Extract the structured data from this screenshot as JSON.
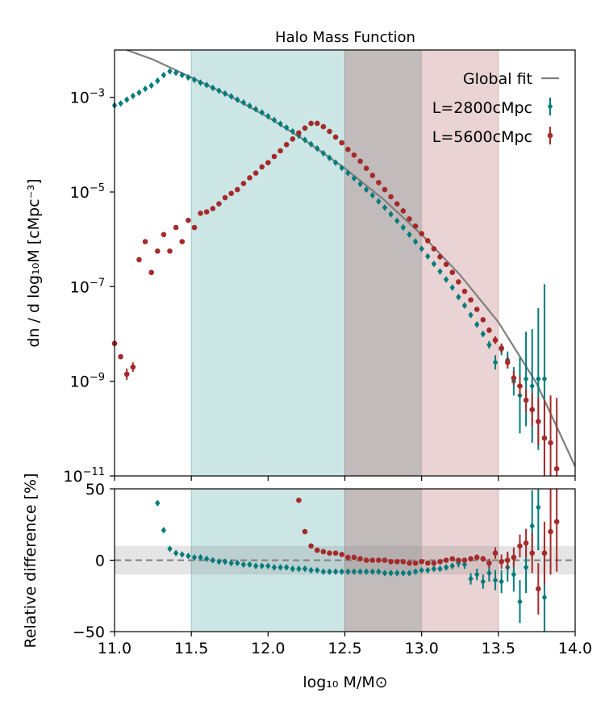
{
  "chart_data": [
    {
      "type": "scatter",
      "title": "Halo Mass Function",
      "xlabel": "log₁₀ M/M⊙",
      "ylabel": "dn / d log₁₀M [cMpc⁻³]",
      "xlim": [
        11.0,
        14.0
      ],
      "ylim_log10": [
        -11,
        -2
      ],
      "yscale": "log",
      "y_ticks": [
        {
          "exp": -3,
          "base": "10",
          "sup": "−3"
        },
        {
          "exp": -5,
          "base": "10",
          "sup": "−5"
        },
        {
          "exp": -7,
          "base": "10",
          "sup": "−7"
        },
        {
          "exp": -9,
          "base": "10",
          "sup": "−9"
        },
        {
          "exp": -11,
          "base": "10",
          "sup": "−11"
        }
      ],
      "shaded_ranges": [
        {
          "x0": 11.5,
          "x1": 12.5,
          "color": "#cce5e5",
          "edge": "#9cc8c8"
        },
        {
          "x0": 12.5,
          "x1": 13.0,
          "color": "#c2bbbb",
          "edge": "#a89e9e"
        },
        {
          "x0": 13.0,
          "x1": 13.5,
          "color": "#ead3d4",
          "edge": "#d6b3b5"
        }
      ],
      "legend": {
        "position": "top-right",
        "entries": [
          {
            "label": "Global fit",
            "kind": "line",
            "color": "#7f7f7f"
          },
          {
            "label": "L=2800cMpc",
            "kind": "diamond",
            "color": "#007b7b"
          },
          {
            "label": "L=5600cMpc",
            "kind": "circle",
            "color": "#a52a2a"
          }
        ]
      },
      "series": [
        {
          "name": "Global fit",
          "kind": "line",
          "color": "#7f7f7f",
          "x": [
            11.08,
            11.25,
            11.5,
            11.75,
            12.0,
            12.25,
            12.5,
            12.75,
            13.0,
            13.25,
            13.5,
            13.75,
            14.0
          ],
          "log10y": [
            -2.0,
            -2.2,
            -2.58,
            -2.97,
            -3.42,
            -3.93,
            -4.5,
            -5.15,
            -5.9,
            -6.75,
            -7.75,
            -9.05,
            -10.8
          ]
        },
        {
          "name": "L=2800cMpc",
          "kind": "diamond",
          "color": "#007b7b",
          "x": [
            11.0,
            11.04,
            11.08,
            11.12,
            11.16,
            11.2,
            11.24,
            11.28,
            11.32,
            11.36,
            11.4,
            11.44,
            11.48,
            11.52,
            11.56,
            11.6,
            11.64,
            11.68,
            11.72,
            11.76,
            11.8,
            11.84,
            11.88,
            11.92,
            11.96,
            12.0,
            12.04,
            12.08,
            12.12,
            12.16,
            12.2,
            12.24,
            12.28,
            12.32,
            12.36,
            12.4,
            12.44,
            12.48,
            12.52,
            12.56,
            12.6,
            12.64,
            12.68,
            12.72,
            12.76,
            12.8,
            12.84,
            12.88,
            12.92,
            12.96,
            13.0,
            13.04,
            13.08,
            13.12,
            13.16,
            13.2,
            13.24,
            13.28,
            13.32,
            13.36,
            13.4,
            13.44,
            13.48,
            13.52,
            13.56,
            13.6,
            13.64,
            13.68,
            13.72,
            13.76,
            13.8
          ],
          "log10y": [
            -3.17,
            -3.13,
            -3.05,
            -2.97,
            -2.9,
            -2.82,
            -2.75,
            -2.65,
            -2.53,
            -2.45,
            -2.48,
            -2.53,
            -2.58,
            -2.63,
            -2.69,
            -2.74,
            -2.8,
            -2.86,
            -2.92,
            -2.98,
            -3.05,
            -3.11,
            -3.18,
            -3.25,
            -3.32,
            -3.4,
            -3.48,
            -3.56,
            -3.64,
            -3.72,
            -3.81,
            -3.9,
            -3.99,
            -4.08,
            -4.18,
            -4.28,
            -4.38,
            -4.49,
            -4.6,
            -4.71,
            -4.83,
            -4.95,
            -5.07,
            -5.2,
            -5.33,
            -5.47,
            -5.61,
            -5.75,
            -5.9,
            -6.05,
            -6.2,
            -6.36,
            -6.52,
            -6.68,
            -6.85,
            -7.02,
            -7.22,
            -7.4,
            -7.6,
            -7.8,
            -8.0,
            -8.23,
            -8.6,
            -8.33,
            -8.55,
            -9.0,
            -9.3,
            -8.95,
            -9.1,
            -8.95,
            -8.95
          ],
          "err": [
            0.02,
            0.02,
            0.02,
            0.02,
            0.02,
            0.02,
            0.02,
            0.02,
            0.02,
            0.02,
            0.02,
            0.02,
            0.02,
            0.02,
            0.02,
            0.02,
            0.02,
            0.02,
            0.02,
            0.02,
            0.02,
            0.02,
            0.02,
            0.02,
            0.02,
            0.02,
            0.02,
            0.02,
            0.02,
            0.02,
            0.02,
            0.02,
            0.02,
            0.02,
            0.02,
            0.02,
            0.02,
            0.02,
            0.02,
            0.02,
            0.02,
            0.02,
            0.02,
            0.02,
            0.02,
            0.02,
            0.02,
            0.02,
            0.02,
            0.02,
            0.02,
            0.02,
            0.03,
            0.03,
            0.03,
            0.04,
            0.04,
            0.04,
            0.05,
            0.06,
            0.06,
            0.08,
            0.15,
            0.12,
            0.18,
            0.3,
            0.8,
            1.0,
            1.2,
            1.5,
            2.0
          ]
        },
        {
          "name": "L=5600cMpc",
          "kind": "circle",
          "color": "#a52a2a",
          "x": [
            11.0,
            11.04,
            11.08,
            11.12,
            11.16,
            11.2,
            11.24,
            11.28,
            11.32,
            11.36,
            11.4,
            11.44,
            11.48,
            11.52,
            11.56,
            11.6,
            11.64,
            11.68,
            11.72,
            11.76,
            11.8,
            11.84,
            11.88,
            11.92,
            11.96,
            12.0,
            12.04,
            12.08,
            12.12,
            12.16,
            12.2,
            12.24,
            12.28,
            12.32,
            12.36,
            12.4,
            12.44,
            12.48,
            12.52,
            12.56,
            12.6,
            12.64,
            12.68,
            12.72,
            12.76,
            12.8,
            12.84,
            12.88,
            12.92,
            12.96,
            13.0,
            13.04,
            13.08,
            13.12,
            13.16,
            13.2,
            13.24,
            13.28,
            13.32,
            13.36,
            13.4,
            13.44,
            13.48,
            13.52,
            13.56,
            13.6,
            13.64,
            13.68,
            13.72,
            13.76,
            13.8,
            13.84,
            13.88
          ],
          "log10y": [
            -8.2,
            -8.48,
            -8.85,
            -8.7,
            -6.43,
            -6.05,
            -6.7,
            -6.25,
            -5.9,
            -6.25,
            -5.75,
            -6.05,
            -5.6,
            -5.75,
            -5.45,
            -5.42,
            -5.35,
            -5.25,
            -5.12,
            -5.03,
            -4.95,
            -4.82,
            -4.7,
            -4.6,
            -4.47,
            -4.38,
            -4.25,
            -4.13,
            -4.0,
            -3.88,
            -3.75,
            -3.65,
            -3.55,
            -3.55,
            -3.62,
            -3.72,
            -3.84,
            -3.96,
            -4.1,
            -4.22,
            -4.35,
            -4.5,
            -4.65,
            -4.8,
            -4.95,
            -5.1,
            -5.25,
            -5.4,
            -5.57,
            -5.72,
            -5.88,
            -6.03,
            -6.2,
            -6.37,
            -6.53,
            -6.7,
            -6.9,
            -7.1,
            -7.28,
            -7.48,
            -7.7,
            -7.92,
            -8.13,
            -8.3,
            -8.6,
            -8.93,
            -9.1,
            -9.4,
            -9.6,
            -9.85,
            -10.2,
            -10.3,
            -10.85
          ],
          "err": [
            0.05,
            0.05,
            0.12,
            0.1,
            0.03,
            0.03,
            0.03,
            0.03,
            0.03,
            0.03,
            0.03,
            0.03,
            0.02,
            0.02,
            0.02,
            0.02,
            0.02,
            0.02,
            0.02,
            0.02,
            0.02,
            0.02,
            0.02,
            0.02,
            0.02,
            0.02,
            0.02,
            0.02,
            0.02,
            0.02,
            0.02,
            0.02,
            0.02,
            0.02,
            0.02,
            0.02,
            0.02,
            0.02,
            0.02,
            0.02,
            0.02,
            0.02,
            0.02,
            0.02,
            0.02,
            0.02,
            0.02,
            0.02,
            0.02,
            0.02,
            0.02,
            0.02,
            0.02,
            0.02,
            0.02,
            0.03,
            0.03,
            0.03,
            0.04,
            0.04,
            0.05,
            0.06,
            0.08,
            0.1,
            0.12,
            0.15,
            0.2,
            0.25,
            0.35,
            0.5,
            0.8,
            1.0,
            1.5
          ]
        }
      ]
    },
    {
      "type": "scatter",
      "xlabel": "log₁₀ M/M⊙",
      "ylabel": "Relative difference [%]",
      "xlim": [
        11.0,
        14.0
      ],
      "ylim": [
        -50,
        50
      ],
      "x_ticks": [
        "11.0",
        "11.5",
        "12.0",
        "12.5",
        "13.0",
        "13.5",
        "14.0"
      ],
      "y_ticks": [
        "50",
        "0",
        "−50"
      ],
      "reference_line": 0,
      "tolerance_band": [
        -10,
        10
      ],
      "shaded_ranges": [
        {
          "x0": 11.5,
          "x1": 12.5,
          "color": "#cce5e5",
          "edge": "#9cc8c8"
        },
        {
          "x0": 12.5,
          "x1": 13.0,
          "color": "#c2bbbb",
          "edge": "#a89e9e"
        },
        {
          "x0": 13.0,
          "x1": 13.5,
          "color": "#ead3d4",
          "edge": "#d6b3b5"
        }
      ],
      "series": [
        {
          "name": "L=2800cMpc",
          "kind": "diamond",
          "color": "#007b7b",
          "x": [
            11.28,
            11.32,
            11.36,
            11.4,
            11.44,
            11.48,
            11.52,
            11.56,
            11.6,
            11.64,
            11.68,
            11.72,
            11.76,
            11.8,
            11.84,
            11.88,
            11.92,
            11.96,
            12.0,
            12.04,
            12.08,
            12.12,
            12.16,
            12.2,
            12.24,
            12.28,
            12.32,
            12.36,
            12.4,
            12.44,
            12.48,
            12.52,
            12.56,
            12.6,
            12.64,
            12.68,
            12.72,
            12.76,
            12.8,
            12.84,
            12.88,
            12.92,
            12.96,
            13.0,
            13.04,
            13.08,
            13.12,
            13.16,
            13.2,
            13.24,
            13.28,
            13.32,
            13.36,
            13.4,
            13.44,
            13.48,
            13.52,
            13.56,
            13.6,
            13.64,
            13.68,
            13.72,
            13.76,
            13.8
          ],
          "y": [
            40,
            21,
            8,
            5,
            4,
            3,
            2,
            2,
            1,
            0,
            -1,
            -1,
            -2,
            -2,
            -3,
            -3,
            -4,
            -4,
            -4,
            -5,
            -5,
            -5,
            -6,
            -6,
            -6,
            -7,
            -7,
            -8,
            -8,
            -8,
            -8,
            -8,
            -8,
            -8,
            -8,
            -8,
            -8,
            -9,
            -9,
            -9,
            -9,
            -9,
            -8,
            -7,
            -7,
            -6,
            -6,
            -5,
            -4,
            -2,
            -3,
            -13,
            -10,
            -15,
            -9,
            -14,
            -15,
            -5,
            -10,
            -29,
            -5,
            24,
            37,
            -26
          ],
          "err": [
            0.5,
            0.5,
            0.5,
            0.5,
            0.5,
            0.5,
            0.5,
            0.5,
            0.5,
            0.5,
            0.5,
            0.5,
            0.5,
            0.5,
            0.5,
            0.5,
            0.5,
            0.5,
            0.5,
            0.5,
            0.5,
            0.5,
            0.5,
            0.5,
            0.5,
            0.5,
            0.5,
            0.5,
            0.5,
            0.5,
            0.5,
            0.5,
            0.5,
            0.5,
            0.5,
            0.5,
            0.5,
            0.5,
            0.5,
            0.5,
            0.5,
            0.5,
            0.5,
            0.5,
            1,
            1,
            1.5,
            2,
            2,
            3,
            3,
            4,
            4,
            5,
            6,
            7,
            8,
            10,
            12,
            15,
            18,
            25,
            30,
            40
          ]
        },
        {
          "name": "L=5600cMpc",
          "kind": "circle",
          "color": "#a52a2a",
          "x": [
            12.2,
            12.24,
            12.28,
            12.32,
            12.36,
            12.4,
            12.44,
            12.48,
            12.52,
            12.56,
            12.6,
            12.64,
            12.68,
            12.72,
            12.76,
            12.8,
            12.84,
            12.88,
            12.92,
            12.96,
            13.0,
            13.04,
            13.08,
            13.12,
            13.16,
            13.2,
            13.24,
            13.28,
            13.32,
            13.36,
            13.4,
            13.44,
            13.48,
            13.52,
            13.56,
            13.6,
            13.64,
            13.68,
            13.72,
            13.76,
            13.8,
            13.84,
            13.88
          ],
          "y": [
            42,
            20,
            10,
            7,
            6,
            5,
            5,
            4,
            2,
            2,
            1,
            0,
            0,
            0,
            0,
            -1,
            -1,
            -1,
            -2,
            -2,
            -1,
            -2,
            -2,
            -1,
            0,
            1,
            0,
            0,
            1,
            2,
            1,
            -2,
            5,
            -1,
            0,
            2,
            10,
            12,
            5,
            -20,
            5,
            20,
            27
          ],
          "err": [
            0.5,
            0.5,
            0.5,
            0.5,
            0.5,
            0.5,
            0.5,
            0.5,
            0.5,
            0.5,
            0.5,
            0.5,
            0.5,
            0.5,
            0.5,
            0.5,
            0.5,
            0.5,
            0.5,
            0.5,
            0.5,
            0.5,
            0.5,
            0.5,
            0.5,
            1,
            1,
            1,
            1.5,
            2,
            2,
            3,
            4,
            5,
            6,
            7,
            8,
            10,
            14,
            18,
            22,
            30,
            35
          ]
        }
      ]
    }
  ]
}
